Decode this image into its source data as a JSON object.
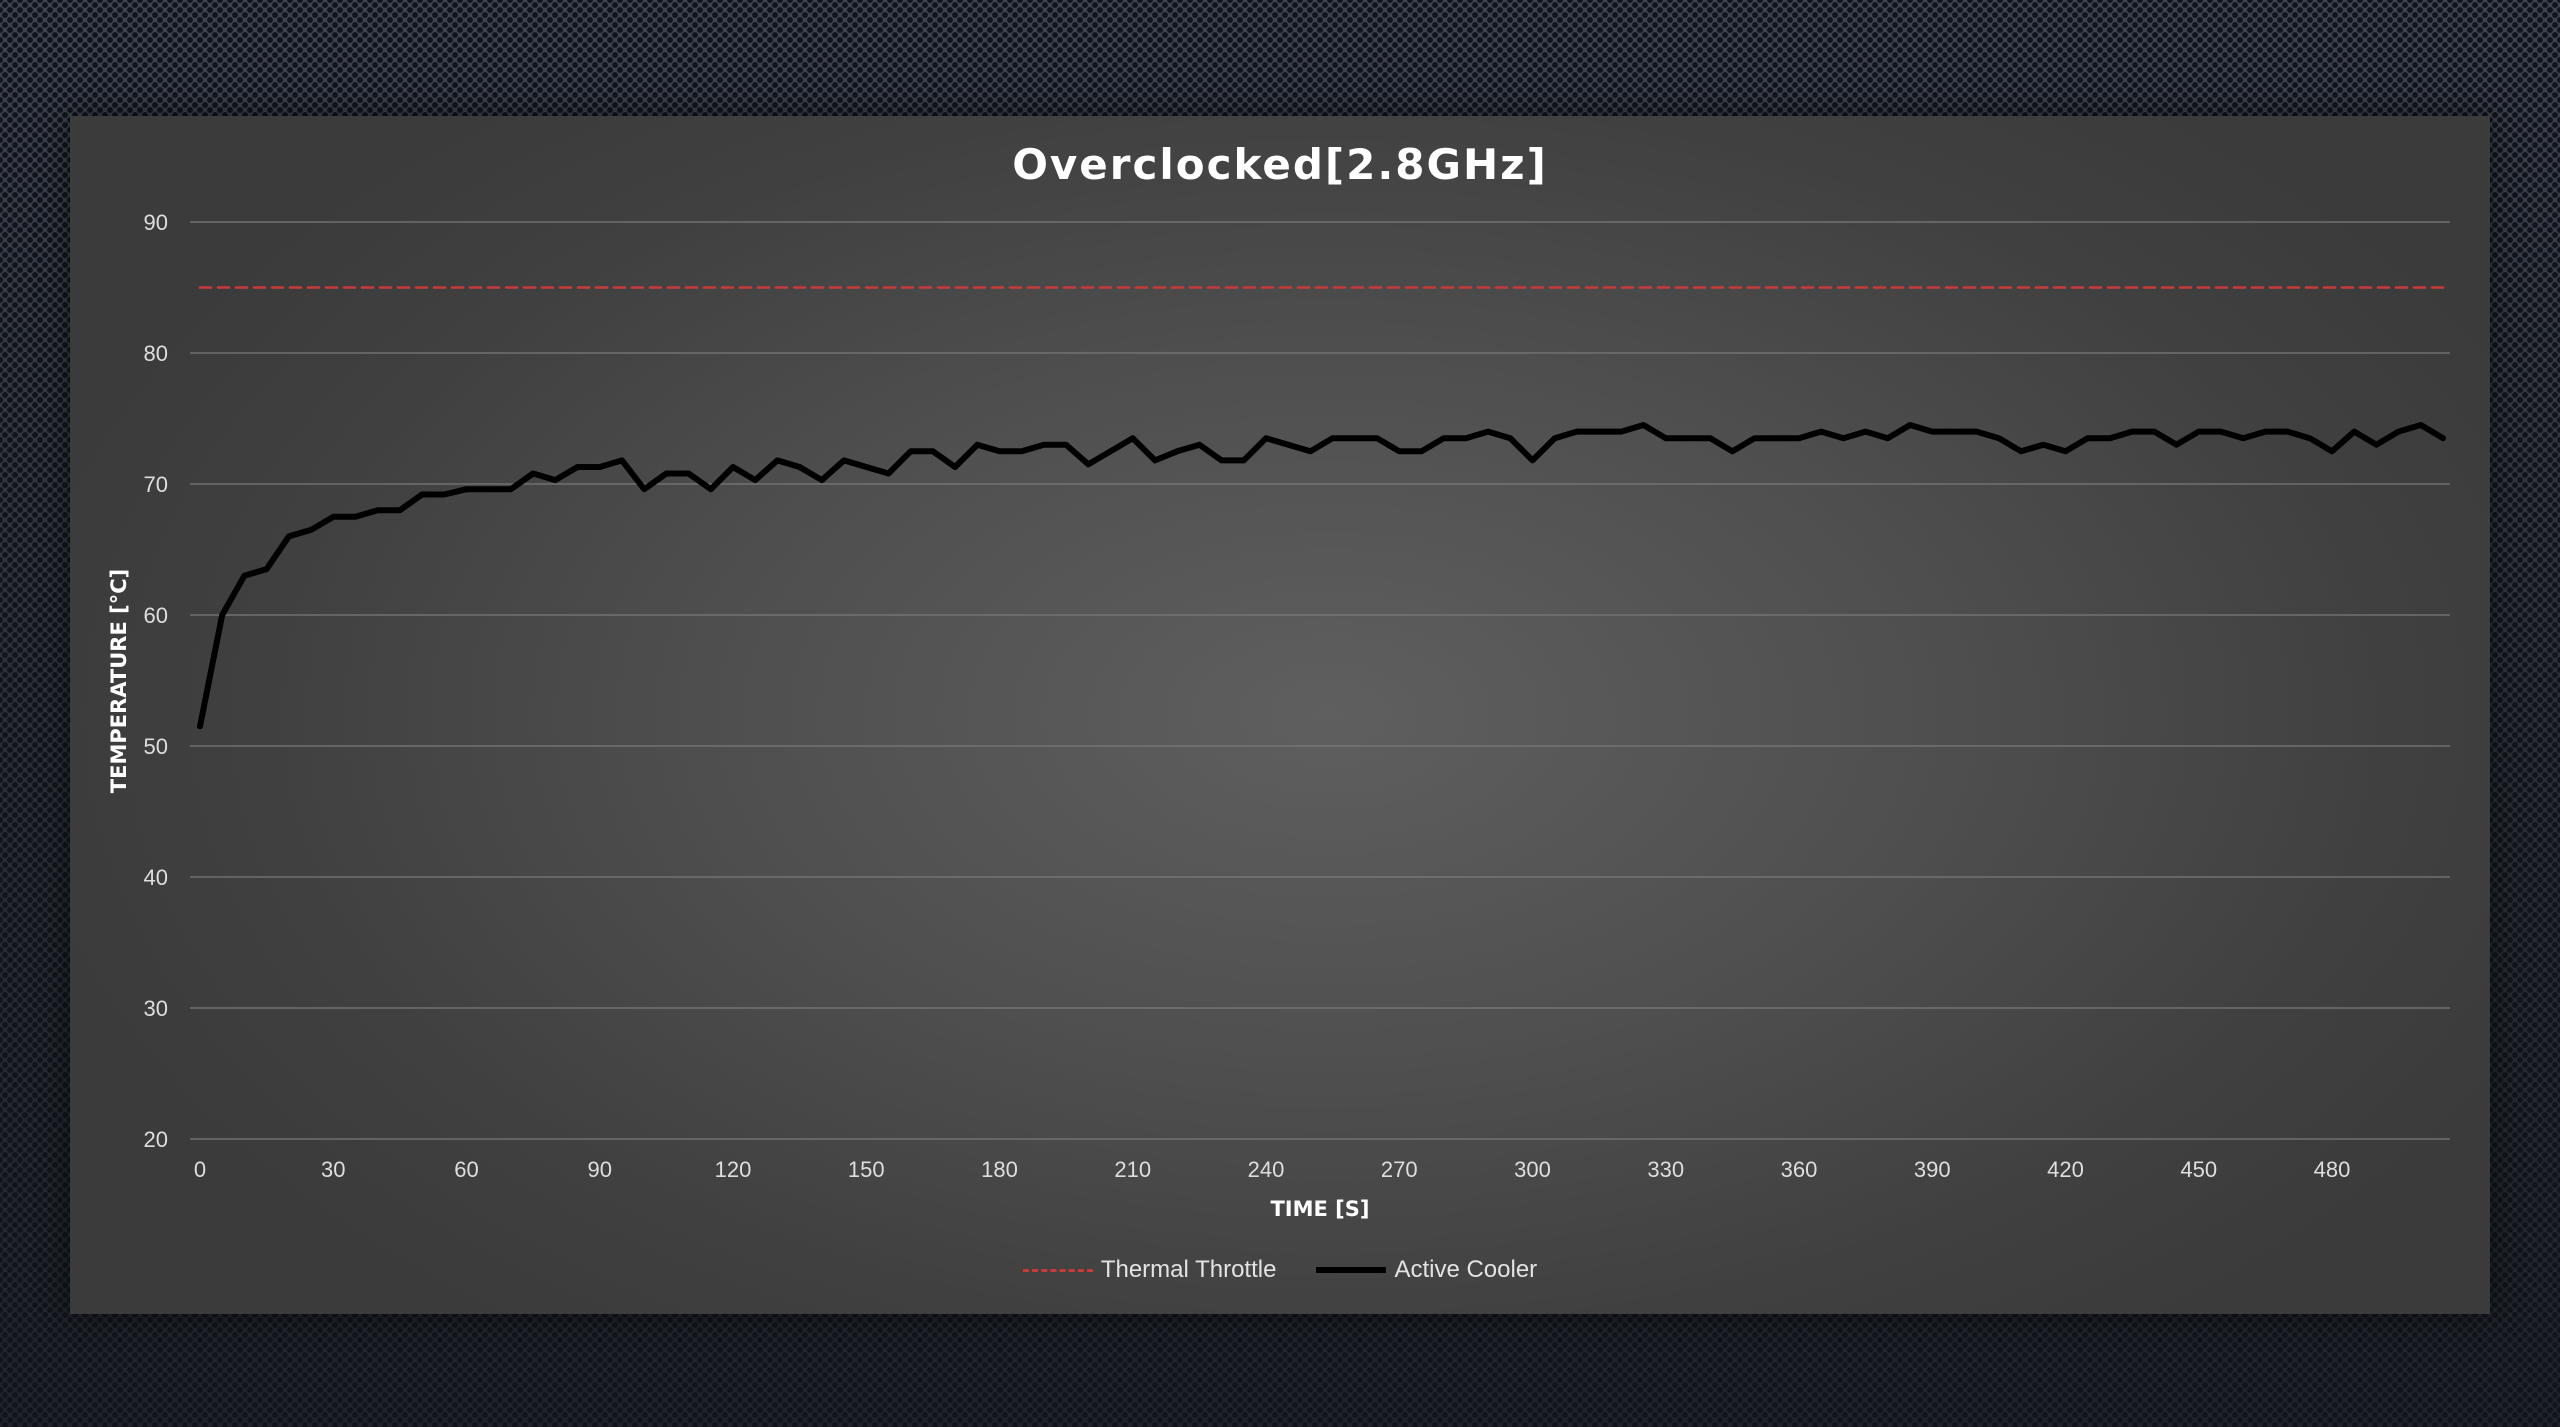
{
  "chart_data": {
    "type": "line",
    "title": "Overclocked[2.8GHz]",
    "xlabel": "TIME [S]",
    "ylabel": "TEMPERATURE [°C]",
    "xlim": [
      0,
      505
    ],
    "ylim": [
      20,
      90
    ],
    "x_ticks": [
      0,
      30,
      60,
      90,
      120,
      150,
      180,
      210,
      240,
      270,
      300,
      330,
      360,
      390,
      420,
      450,
      480
    ],
    "y_ticks": [
      20,
      30,
      40,
      50,
      60,
      70,
      80,
      90
    ],
    "grid": true,
    "legend_position": "bottom",
    "series": [
      {
        "name": "Thermal Throttle",
        "color": "#c83a3a",
        "style": "dashed",
        "x": [
          0,
          505
        ],
        "values": [
          85,
          85
        ]
      },
      {
        "name": "Active Cooler",
        "color": "#000000",
        "style": "solid",
        "x": [
          0,
          5,
          10,
          15,
          20,
          25,
          30,
          35,
          40,
          45,
          50,
          55,
          60,
          65,
          70,
          75,
          80,
          85,
          90,
          95,
          100,
          105,
          110,
          115,
          120,
          125,
          130,
          135,
          140,
          145,
          150,
          155,
          160,
          165,
          170,
          175,
          180,
          185,
          190,
          195,
          200,
          205,
          210,
          215,
          220,
          225,
          230,
          235,
          240,
          245,
          250,
          255,
          260,
          265,
          270,
          275,
          280,
          285,
          290,
          295,
          300,
          305,
          310,
          315,
          320,
          325,
          330,
          335,
          340,
          345,
          350,
          355,
          360,
          365,
          370,
          375,
          380,
          385,
          390,
          395,
          400,
          405,
          410,
          415,
          420,
          425,
          430,
          435,
          440,
          445,
          450,
          455,
          460,
          465,
          470,
          475,
          480,
          485,
          490,
          495,
          500,
          505
        ],
        "values": [
          51.5,
          60,
          63,
          63.5,
          66,
          66.5,
          67.5,
          67.5,
          68,
          68,
          69.2,
          69.2,
          69.6,
          69.6,
          69.6,
          70.8,
          70.3,
          71.3,
          71.3,
          71.8,
          69.6,
          70.8,
          70.8,
          69.6,
          71.3,
          70.3,
          71.8,
          71.3,
          70.3,
          71.8,
          71.3,
          70.8,
          72.5,
          72.5,
          71.3,
          73,
          72.5,
          72.5,
          73,
          73,
          71.5,
          72.5,
          73.5,
          71.8,
          72.5,
          73,
          71.8,
          71.8,
          73.5,
          73,
          72.5,
          73.5,
          73.5,
          73.5,
          72.5,
          72.5,
          73.5,
          73.5,
          74,
          73.5,
          71.8,
          73.5,
          74,
          74,
          74,
          74.5,
          73.5,
          73.5,
          73.5,
          72.5,
          73.5,
          73.5,
          73.5,
          74,
          73.5,
          74,
          73.5,
          74.5,
          74,
          74,
          74,
          73.5,
          72.5,
          73,
          72.5,
          73.5,
          73.5,
          74,
          74,
          73,
          74,
          74,
          73.5,
          74,
          74,
          73.5,
          72.5,
          74,
          73,
          74,
          74.5,
          73.5
        ]
      }
    ]
  }
}
